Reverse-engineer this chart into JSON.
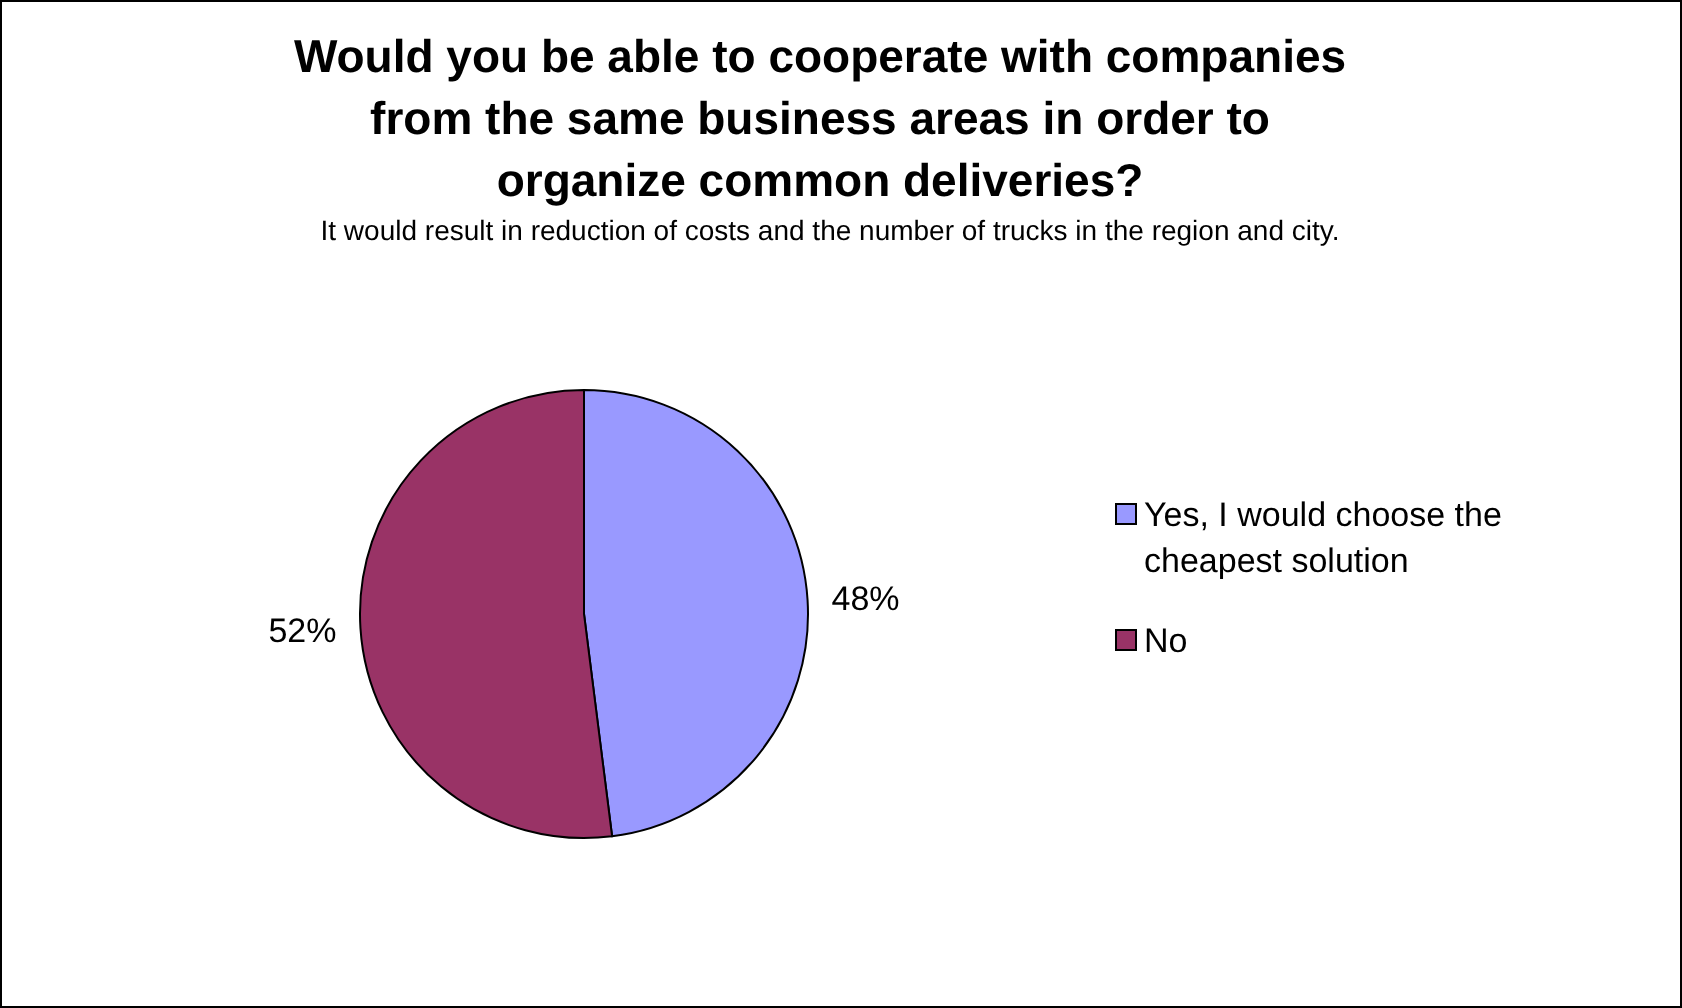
{
  "chart_data": {
    "type": "pie",
    "title": "Would you be able to cooperate with companies from the same business areas in order to organize common deliveries?",
    "subtitle": "It would result in reduction of costs and the number of trucks in the region and city.",
    "categories": [
      "Yes, I would choose the cheapest solution",
      "No"
    ],
    "values": [
      48,
      52
    ],
    "colors": [
      "#9999ff",
      "#993366"
    ],
    "value_labels": [
      "48%",
      "52%"
    ],
    "legend": "right"
  }
}
